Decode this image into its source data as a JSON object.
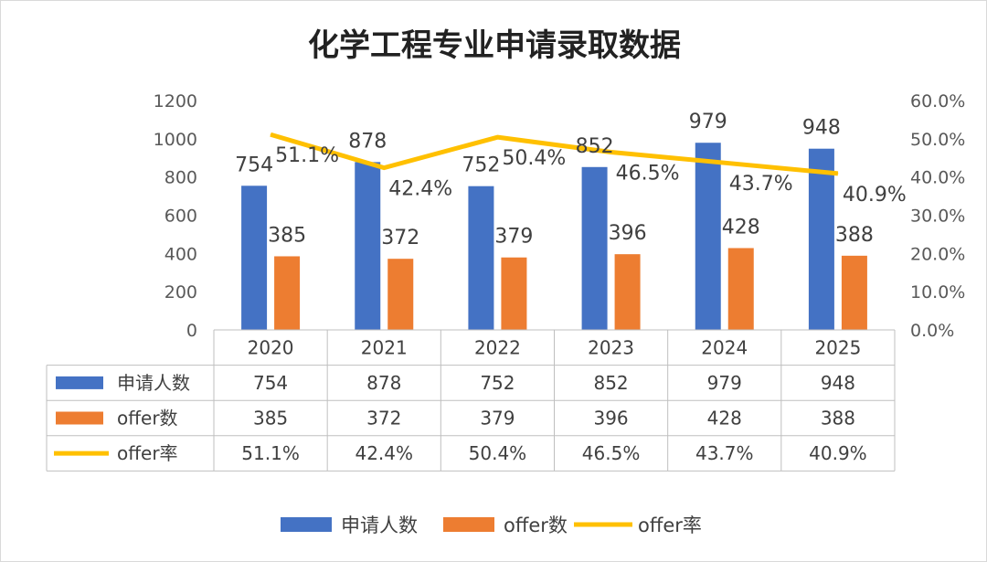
{
  "chart_data": {
    "type": "bar",
    "title": "化学工程专业申请录取数据",
    "categories": [
      "2020",
      "2021",
      "2022",
      "2023",
      "2024",
      "2025"
    ],
    "y_left": {
      "range": [
        0,
        1200
      ],
      "ticks": [
        "0",
        "200",
        "400",
        "600",
        "800",
        "1000",
        "1200"
      ]
    },
    "y_right": {
      "range": [
        0,
        60
      ],
      "ticks": [
        "0.0%",
        "10.0%",
        "20.0%",
        "30.0%",
        "40.0%",
        "50.0%",
        "60.0%"
      ]
    },
    "series": [
      {
        "name": "申请人数",
        "kind": "bar",
        "axis": "left",
        "color": "#4472C4",
        "values": [
          754,
          878,
          752,
          852,
          979,
          948
        ],
        "labels": [
          "754",
          "878",
          "752",
          "852",
          "979",
          "948"
        ]
      },
      {
        "name": "offer数",
        "kind": "bar",
        "axis": "left",
        "color": "#ED7D31",
        "values": [
          385,
          372,
          379,
          396,
          428,
          388
        ],
        "labels": [
          "385",
          "372",
          "379",
          "396",
          "428",
          "388"
        ]
      },
      {
        "name": "offer率",
        "kind": "line",
        "axis": "right",
        "color": "#FFC000",
        "values": [
          51.1,
          42.4,
          50.4,
          46.5,
          43.7,
          40.9
        ],
        "labels": [
          "51.1%",
          "42.4%",
          "50.4%",
          "46.5%",
          "43.7%",
          "40.9%"
        ]
      }
    ],
    "grid": false,
    "legend": "bottom",
    "data_table": true
  }
}
